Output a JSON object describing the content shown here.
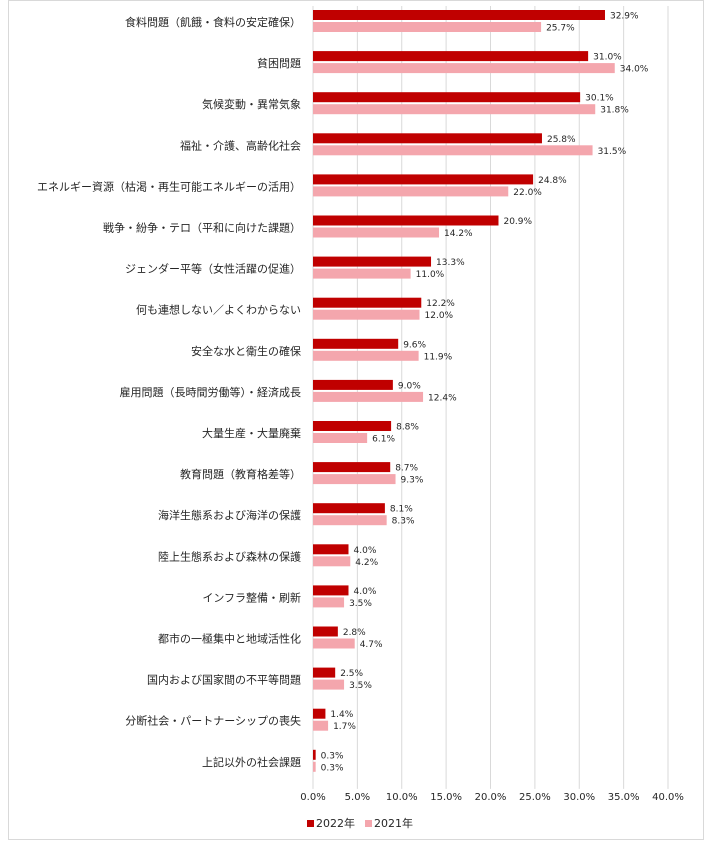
{
  "chart_data": {
    "type": "bar",
    "orientation": "horizontal",
    "categories": [
      "食料問題（飢餓・食料の安定確保）",
      "貧困問題",
      "気候変動・異常気象",
      "福祉・介護、高齢化社会",
      "エネルギー資源（枯渇・再生可能エネルギーの活用）",
      "戦争・紛争・テロ（平和に向けた課題）",
      "ジェンダー平等（女性活躍の促進）",
      "何も連想しない／よくわからない",
      "安全な水と衛生の確保",
      "雇用問題（長時間労働等）・経済成長",
      "大量生産・大量廃棄",
      "教育問題（教育格差等）",
      "海洋生態系および海洋の保護",
      "陸上生態系および森林の保護",
      "インフラ整備・刷新",
      "都市の一極集中と地域活性化",
      "国内および国家間の不平等問題",
      "分断社会・パートナーシップの喪失",
      "上記以外の社会課題"
    ],
    "series": [
      {
        "name": "2022年",
        "color": "#c00000",
        "values": [
          32.9,
          31.0,
          30.1,
          25.8,
          24.8,
          20.9,
          13.3,
          12.2,
          9.6,
          9.0,
          8.8,
          8.7,
          8.1,
          4.0,
          4.0,
          2.8,
          2.5,
          1.4,
          0.3
        ],
        "labels": [
          "32.9%",
          "31.0%",
          "30.1%",
          "25.8%",
          "24.8%",
          "20.9%",
          "13.3%",
          "12.2%",
          "9.6%",
          "9.0%",
          "8.8%",
          "8.7%",
          "8.1%",
          "4.0%",
          "4.0%",
          "2.8%",
          "2.5%",
          "1.4%",
          "0.3%"
        ]
      },
      {
        "name": "2021年",
        "color": "#f4a6ad",
        "values": [
          25.7,
          34.0,
          31.8,
          31.5,
          22.0,
          14.2,
          11.0,
          12.0,
          11.9,
          12.4,
          6.1,
          9.3,
          8.3,
          4.2,
          3.5,
          4.7,
          3.5,
          1.7,
          0.3
        ],
        "labels": [
          "25.7%",
          "34.0%",
          "31.8%",
          "31.5%",
          "22.0%",
          "14.2%",
          "11.0%",
          "12.0%",
          "11.9%",
          "12.4%",
          "6.1%",
          "9.3%",
          "8.3%",
          "4.2%",
          "3.5%",
          "4.7%",
          "3.5%",
          "1.7%",
          "0.3%"
        ]
      }
    ],
    "xlim": [
      0,
      40
    ],
    "xticks": [
      0,
      5,
      10,
      15,
      20,
      25,
      30,
      35,
      40
    ],
    "xtick_labels": [
      "0.0%",
      "5.0%",
      "10.0%",
      "15.0%",
      "20.0%",
      "25.0%",
      "30.0%",
      "35.0%",
      "40.0%"
    ],
    "grid": "vertical",
    "legend_position": "bottom-center",
    "gridline_color": "#d9d9d9"
  }
}
